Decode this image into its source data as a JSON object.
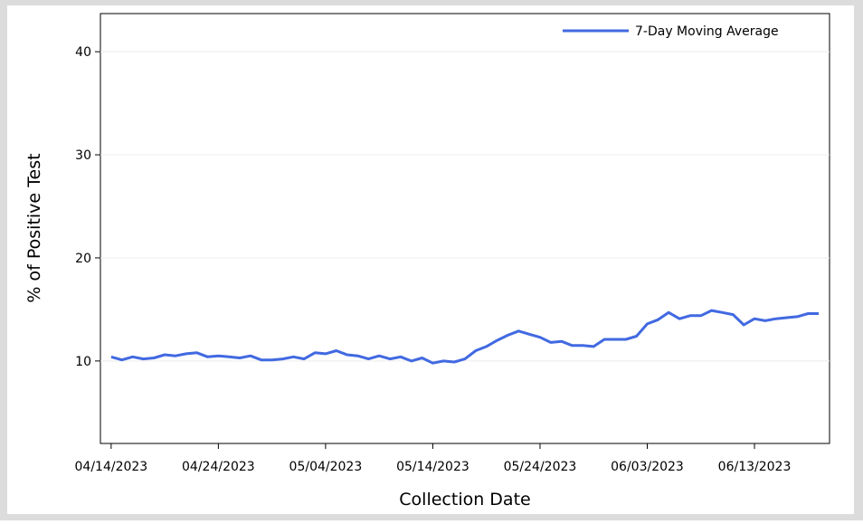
{
  "chart_data": {
    "type": "line",
    "x_label": "Collection Date",
    "y_label": "% of Positive Test",
    "x": [
      "04/14/2023",
      "04/15/2023",
      "04/16/2023",
      "04/17/2023",
      "04/18/2023",
      "04/19/2023",
      "04/20/2023",
      "04/21/2023",
      "04/22/2023",
      "04/23/2023",
      "04/24/2023",
      "04/25/2023",
      "04/26/2023",
      "04/27/2023",
      "04/28/2023",
      "04/29/2023",
      "04/30/2023",
      "05/01/2023",
      "05/02/2023",
      "05/03/2023",
      "05/04/2023",
      "05/05/2023",
      "05/06/2023",
      "05/07/2023",
      "05/08/2023",
      "05/09/2023",
      "05/10/2023",
      "05/11/2023",
      "05/12/2023",
      "05/13/2023",
      "05/14/2023",
      "05/15/2023",
      "05/16/2023",
      "05/17/2023",
      "05/18/2023",
      "05/19/2023",
      "05/20/2023",
      "05/21/2023",
      "05/22/2023",
      "05/23/2023",
      "05/24/2023",
      "05/25/2023",
      "05/26/2023",
      "05/27/2023",
      "05/28/2023",
      "05/29/2023",
      "05/30/2023",
      "05/31/2023",
      "06/01/2023",
      "06/02/2023",
      "06/03/2023",
      "06/04/2023",
      "06/05/2023",
      "06/06/2023",
      "06/07/2023",
      "06/08/2023",
      "06/09/2023",
      "06/10/2023",
      "06/11/2023",
      "06/12/2023",
      "06/13/2023",
      "06/14/2023",
      "06/15/2023",
      "06/16/2023",
      "06/17/2023",
      "06/18/2023",
      "06/19/2023"
    ],
    "series": [
      {
        "name": "7-Day Moving Average",
        "color": "#4169e1",
        "values": [
          10.4,
          10.1,
          10.4,
          10.2,
          10.3,
          10.6,
          10.5,
          10.7,
          10.8,
          10.4,
          10.5,
          10.4,
          10.3,
          10.5,
          10.1,
          10.1,
          10.2,
          10.4,
          10.2,
          10.8,
          10.7,
          11.0,
          10.6,
          10.5,
          10.2,
          10.5,
          10.2,
          10.4,
          10.0,
          10.3,
          9.8,
          10.0,
          9.9,
          10.2,
          11.0,
          11.4,
          12.0,
          12.5,
          12.9,
          12.6,
          12.3,
          11.8,
          11.9,
          11.5,
          11.5,
          11.4,
          12.1,
          12.1,
          12.1,
          12.4,
          13.6,
          14.0,
          14.7,
          14.1,
          14.4,
          14.4,
          14.9,
          14.7,
          14.5,
          13.5,
          14.1,
          13.9,
          14.1,
          14.2,
          14.3,
          14.6,
          14.6
        ]
      }
    ],
    "xlim": [
      "04/13/2023",
      "06/20/2023"
    ],
    "xticks": [
      "04/14/2023",
      "04/24/2023",
      "05/04/2023",
      "05/14/2023",
      "05/24/2023",
      "06/03/2023",
      "06/13/2023"
    ],
    "ylim": [
      2,
      43.7
    ],
    "yticks": [
      10,
      20,
      30,
      40
    ],
    "grid": true,
    "legend": "top-right"
  }
}
